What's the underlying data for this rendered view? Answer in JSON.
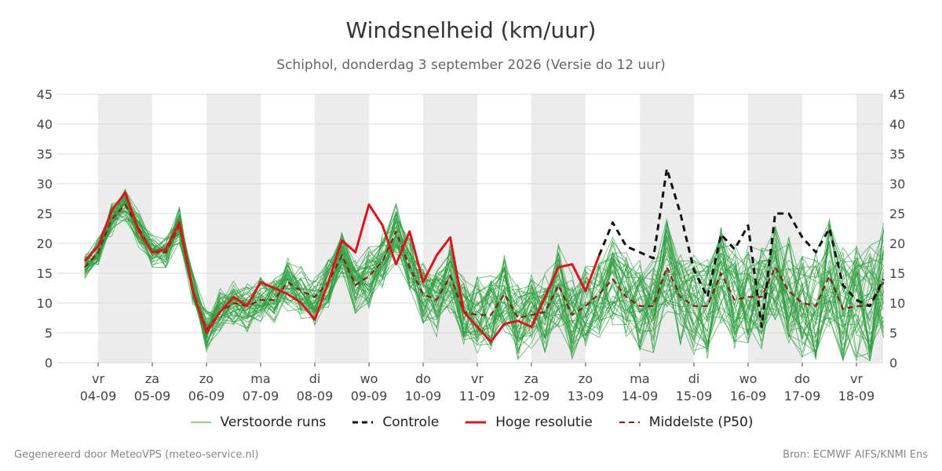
{
  "chart_data": {
    "type": "line",
    "title": "Windsnelheid (km/uur)",
    "subtitle": "Schiphol, donderdag  3 september 2026 (Versie do 12 uur)",
    "ylim": [
      0,
      45
    ],
    "yticks": [
      0,
      5,
      10,
      15,
      20,
      25,
      30,
      35,
      40,
      45
    ],
    "xlim": [
      0,
      14.5
    ],
    "shaded_days": [
      0,
      2,
      4,
      6,
      8,
      10,
      12,
      14
    ],
    "x_ticks": [
      {
        "day": "vr",
        "date": "04-09"
      },
      {
        "day": "za",
        "date": "05-09"
      },
      {
        "day": "zo",
        "date": "06-09"
      },
      {
        "day": "ma",
        "date": "07-09"
      },
      {
        "day": "di",
        "date": "08-09"
      },
      {
        "day": "wo",
        "date": "09-09"
      },
      {
        "day": "do",
        "date": "10-09"
      },
      {
        "day": "vr",
        "date": "11-09"
      },
      {
        "day": "za",
        "date": "12-09"
      },
      {
        "day": "zo",
        "date": "13-09"
      },
      {
        "day": "ma",
        "date": "14-09"
      },
      {
        "day": "di",
        "date": "15-09"
      },
      {
        "day": "wo",
        "date": "16-09"
      },
      {
        "day": "do",
        "date": "17-09"
      },
      {
        "day": "vr",
        "date": "18-09"
      }
    ],
    "series": [
      {
        "name": "Hoge resolutie",
        "color": "#e0131a",
        "style": "solid",
        "x": [
          -0.25,
          0,
          0.25,
          0.5,
          0.75,
          1,
          1.25,
          1.5,
          1.75,
          2,
          2.25,
          2.5,
          2.75,
          3,
          3.25,
          3.5,
          3.75,
          4,
          4.25,
          4.5,
          4.75,
          5,
          5.25,
          5.5,
          5.75,
          6,
          6.25,
          6.5,
          6.75,
          7,
          7.25,
          7.5,
          7.75,
          8,
          8.25,
          8.5,
          8.75,
          9,
          9.25
        ],
        "values": [
          17,
          19.5,
          25.5,
          28.5,
          22,
          18.5,
          19,
          23.5,
          12,
          5,
          8.5,
          11,
          9.5,
          13.5,
          12.5,
          11.5,
          10,
          7.2,
          13.5,
          20.5,
          18.5,
          26.5,
          23,
          16.5,
          22,
          13.5,
          18,
          21,
          8.5,
          6,
          3.5,
          6.5,
          7,
          6,
          11,
          16,
          16.5,
          12,
          18
        ]
      },
      {
        "name": "Controle",
        "color": "#111111",
        "style": "dashed",
        "x": [
          9.25,
          9.5,
          9.75,
          10,
          10.25,
          10.5,
          10.75,
          11,
          11.25,
          11.5,
          11.75,
          12,
          12.25,
          12.5,
          12.75,
          13,
          13.25,
          13.5,
          13.75,
          14,
          14.25,
          14.5
        ],
        "values": [
          18,
          23.5,
          19.5,
          18.5,
          17.5,
          32.5,
          25,
          15.5,
          11,
          21.5,
          19,
          23,
          6,
          25,
          25,
          21,
          18.5,
          22.5,
          13,
          10.5,
          9.5,
          14
        ]
      },
      {
        "name": "Middelste (P50)",
        "color": "#8b1a1a",
        "style": "dashed",
        "x": [
          -0.25,
          0,
          0.25,
          0.5,
          0.75,
          1,
          1.25,
          1.5,
          1.75,
          2,
          2.25,
          2.5,
          2.75,
          3,
          3.25,
          3.5,
          3.75,
          4,
          4.25,
          4.5,
          4.75,
          5,
          5.25,
          5.5,
          5.75,
          6,
          6.25,
          6.5,
          6.75,
          7,
          7.25,
          7.5,
          7.75,
          8,
          8.25,
          8.5,
          8.75,
          9,
          9.25,
          9.5,
          9.75,
          10,
          10.25,
          10.5,
          10.75,
          11,
          11.25,
          11.5,
          11.75,
          12,
          12.25,
          12.5,
          12.75,
          13,
          13.25,
          13.5,
          13.75,
          14,
          14.25,
          14.5
        ],
        "values": [
          16,
          18.5,
          24,
          26.5,
          22.5,
          18.5,
          18.5,
          23,
          12,
          5.5,
          8.5,
          10,
          9.5,
          10.5,
          10.5,
          13.5,
          12,
          11,
          13.5,
          18,
          13,
          14.5,
          17,
          22,
          16,
          11.5,
          10.5,
          14.5,
          8.5,
          8,
          8,
          11.5,
          7.5,
          8,
          8.5,
          13,
          8,
          9.5,
          11.5,
          14,
          11,
          9.5,
          9.5,
          16,
          11,
          9.5,
          9.5,
          15,
          10.5,
          11,
          11,
          16,
          12,
          10,
          9.5,
          14.5,
          9,
          9.5,
          9.5,
          13.5
        ]
      },
      {
        "name": "Verstoorde runs",
        "color": "#2e9e3e",
        "style": "thin"
      }
    ],
    "legend_placement": "bottom",
    "grid": true
  },
  "footer": {
    "left": "Gegenereerd door MeteoVPS (meteo-service.nl)",
    "right": "Bron: ECMWF AIFS/KNMI Ens"
  }
}
